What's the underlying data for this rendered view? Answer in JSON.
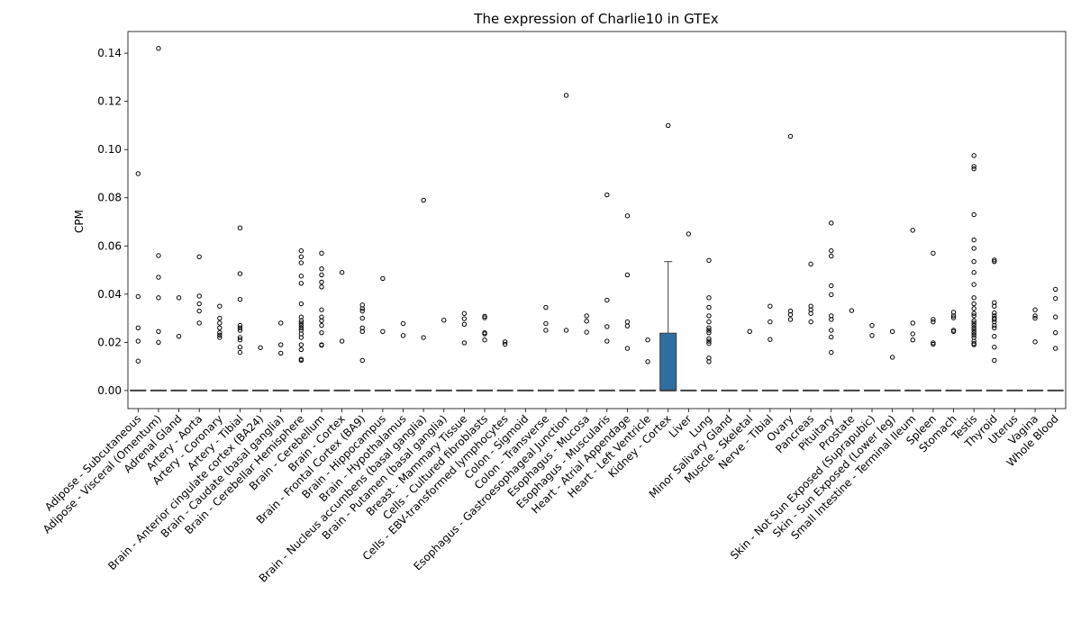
{
  "chart_data": {
    "type": "box",
    "title": "The expression of Charlie10 in GTEx",
    "xlabel": "",
    "ylabel": "CPM",
    "ylim": [
      -0.0075,
      0.149
    ],
    "yticks": [
      0.0,
      0.02,
      0.04,
      0.06,
      0.08,
      0.1,
      0.12,
      0.14
    ],
    "ytick_labels": [
      "0.00",
      "0.02",
      "0.04",
      "0.06",
      "0.08",
      "0.10",
      "0.12",
      "0.14"
    ],
    "box_color": "#2f6e9e",
    "grid": false,
    "categories": [
      "Adipose - Subcutaneous",
      "Adipose - Visceral (Omentum)",
      "Adrenal Gland",
      "Artery - Aorta",
      "Artery - Coronary",
      "Artery - Tibial",
      "Brain - Anterior cingulate cortex (BA24)",
      "Brain - Caudate (basal ganglia)",
      "Brain - Cerebellar Hemisphere",
      "Brain - Cerebellum",
      "Brain - Cortex",
      "Brain - Frontal Cortex (BA9)",
      "Brain - Hippocampus",
      "Brain - Hypothalamus",
      "Brain - Nucleus accumbens (basal ganglia)",
      "Brain - Putamen (basal ganglia)",
      "Breast - Mammary Tissue",
      "Cells - Cultured fibroblasts",
      "Cells - EBV-transformed lymphocytes",
      "Colon - Sigmoid",
      "Colon - Transverse",
      "Esophagus - Gastroesophageal Junction",
      "Esophagus - Mucosa",
      "Esophagus - Muscularis",
      "Heart - Atrial Appendage",
      "Heart - Left Ventricle",
      "Kidney - Cortex",
      "Liver",
      "Lung",
      "Minor Salivary Gland",
      "Muscle - Skeletal",
      "Nerve - Tibial",
      "Ovary",
      "Pancreas",
      "Pituitary",
      "Prostate",
      "Skin - Not Sun Exposed (Suprapubic)",
      "Skin - Sun Exposed (Lower leg)",
      "Small Intestine - Terminal Ileum",
      "Spleen",
      "Stomach",
      "Testis",
      "Thyroid",
      "Uterus",
      "Vagina",
      "Whole Blood"
    ],
    "boxes": [
      {
        "median": 0,
        "q1": 0,
        "q3": 0,
        "whisker_low": 0,
        "whisker_high": 0,
        "fliers": [
          0.09,
          0.039,
          0.026,
          0.0205,
          0.0122
        ]
      },
      {
        "median": 0,
        "q1": 0,
        "q3": 0,
        "whisker_low": 0,
        "whisker_high": 0,
        "fliers": [
          0.142,
          0.056,
          0.047,
          0.0385,
          0.0245,
          0.02
        ]
      },
      {
        "median": 0,
        "q1": 0,
        "q3": 0,
        "whisker_low": 0,
        "whisker_high": 0,
        "fliers": [
          0.0385,
          0.0225
        ]
      },
      {
        "median": 0,
        "q1": 0,
        "q3": 0,
        "whisker_low": 0,
        "whisker_high": 0,
        "fliers": [
          0.0555,
          0.0392,
          0.036,
          0.033,
          0.028
        ]
      },
      {
        "median": 0,
        "q1": 0,
        "q3": 0,
        "whisker_low": 0,
        "whisker_high": 0,
        "fliers": [
          0.035,
          0.03,
          0.028,
          0.026,
          0.024,
          0.023,
          0.022
        ]
      },
      {
        "median": 0,
        "q1": 0,
        "q3": 0,
        "whisker_low": 0,
        "whisker_high": 0,
        "fliers": [
          0.0675,
          0.0485,
          0.0378,
          0.027,
          0.026,
          0.025,
          0.022,
          0.021,
          0.018,
          0.0158
        ]
      },
      {
        "median": 0,
        "q1": 0,
        "q3": 0,
        "whisker_low": 0,
        "whisker_high": 0,
        "fliers": [
          0.0178
        ]
      },
      {
        "median": 0,
        "q1": 0,
        "q3": 0,
        "whisker_low": 0,
        "whisker_high": 0,
        "fliers": [
          0.028,
          0.019,
          0.0155
        ]
      },
      {
        "median": 0,
        "q1": 0,
        "q3": 0,
        "whisker_low": 0,
        "whisker_high": 0,
        "fliers": [
          0.058,
          0.0555,
          0.053,
          0.0475,
          0.0445,
          0.036,
          0.0305,
          0.029,
          0.028,
          0.027,
          0.026,
          0.025,
          0.0235,
          0.022,
          0.019,
          0.017,
          0.013,
          0.0125
        ]
      },
      {
        "median": 0,
        "q1": 0,
        "q3": 0,
        "whisker_low": 0,
        "whisker_high": 0,
        "fliers": [
          0.057,
          0.0505,
          0.048,
          0.045,
          0.043,
          0.0335,
          0.0305,
          0.029,
          0.027,
          0.024,
          0.019,
          0.0188
        ]
      },
      {
        "median": 0,
        "q1": 0,
        "q3": 0,
        "whisker_low": 0,
        "whisker_high": 0,
        "fliers": [
          0.049,
          0.0205
        ]
      },
      {
        "median": 0,
        "q1": 0,
        "q3": 0,
        "whisker_low": 0,
        "whisker_high": 0,
        "fliers": [
          0.0355,
          0.034,
          0.033,
          0.03,
          0.026,
          0.0245,
          0.0125
        ]
      },
      {
        "median": 0,
        "q1": 0,
        "q3": 0,
        "whisker_low": 0,
        "whisker_high": 0,
        "fliers": [
          0.0465,
          0.0245
        ]
      },
      {
        "median": 0,
        "q1": 0,
        "q3": 0,
        "whisker_low": 0,
        "whisker_high": 0,
        "fliers": [
          0.0278,
          0.0228
        ]
      },
      {
        "median": 0,
        "q1": 0,
        "q3": 0,
        "whisker_low": 0,
        "whisker_high": 0,
        "fliers": [
          0.079,
          0.022
        ]
      },
      {
        "median": 0,
        "q1": 0,
        "q3": 0,
        "whisker_low": 0,
        "whisker_high": 0,
        "fliers": [
          0.0292
        ]
      },
      {
        "median": 0,
        "q1": 0,
        "q3": 0,
        "whisker_low": 0,
        "whisker_high": 0,
        "fliers": [
          0.032,
          0.0298,
          0.0275,
          0.0198
        ]
      },
      {
        "median": 0,
        "q1": 0,
        "q3": 0,
        "whisker_low": 0,
        "whisker_high": 0,
        "fliers": [
          0.0308,
          0.0302,
          0.024,
          0.0235,
          0.021
        ]
      },
      {
        "median": 0,
        "q1": 0,
        "q3": 0,
        "whisker_low": 0,
        "whisker_high": 0,
        "fliers": [
          0.0202,
          0.0192
        ]
      },
      {
        "median": 0,
        "q1": 0,
        "q3": 0,
        "whisker_low": 0,
        "whisker_high": 0,
        "fliers": []
      },
      {
        "median": 0,
        "q1": 0,
        "q3": 0,
        "whisker_low": 0,
        "whisker_high": 0,
        "fliers": [
          0.0345,
          0.0278,
          0.025
        ]
      },
      {
        "median": 0,
        "q1": 0,
        "q3": 0,
        "whisker_low": 0,
        "whisker_high": 0,
        "fliers": [
          0.1225,
          0.025
        ]
      },
      {
        "median": 0,
        "q1": 0,
        "q3": 0,
        "whisker_low": 0,
        "whisker_high": 0,
        "fliers": [
          0.031,
          0.0288,
          0.0242
        ]
      },
      {
        "median": 0,
        "q1": 0,
        "q3": 0,
        "whisker_low": 0,
        "whisker_high": 0,
        "fliers": [
          0.0812,
          0.0375,
          0.0265,
          0.0205
        ]
      },
      {
        "median": 0,
        "q1": 0,
        "q3": 0,
        "whisker_low": 0,
        "whisker_high": 0,
        "fliers": [
          0.0725,
          0.048,
          0.0285,
          0.0268,
          0.0175
        ]
      },
      {
        "median": 0,
        "q1": 0,
        "q3": 0,
        "whisker_low": 0,
        "whisker_high": 0,
        "fliers": [
          0.021,
          0.012
        ]
      },
      {
        "median": 0,
        "q1": 0,
        "q3": 0.0238,
        "whisker_low": 0,
        "whisker_high": 0.0535,
        "fliers": [
          0.11
        ]
      },
      {
        "median": 0,
        "q1": 0,
        "q3": 0,
        "whisker_low": 0,
        "whisker_high": 0,
        "fliers": [
          0.065
        ]
      },
      {
        "median": 0,
        "q1": 0,
        "q3": 0,
        "whisker_low": 0,
        "whisker_high": 0,
        "fliers": [
          0.054,
          0.0385,
          0.0345,
          0.031,
          0.0285,
          0.026,
          0.025,
          0.024,
          0.0215,
          0.0205,
          0.0195,
          0.0135,
          0.012
        ]
      },
      {
        "median": 0,
        "q1": 0,
        "q3": 0,
        "whisker_low": 0,
        "whisker_high": 0,
        "fliers": []
      },
      {
        "median": 0,
        "q1": 0,
        "q3": 0,
        "whisker_low": 0,
        "whisker_high": 0,
        "fliers": [
          0.0245
        ]
      },
      {
        "median": 0,
        "q1": 0,
        "q3": 0,
        "whisker_low": 0,
        "whisker_high": 0,
        "fliers": [
          0.035,
          0.0285,
          0.0212
        ]
      },
      {
        "median": 0,
        "q1": 0,
        "q3": 0,
        "whisker_low": 0,
        "whisker_high": 0,
        "fliers": [
          0.1055,
          0.033,
          0.0315,
          0.0295
        ]
      },
      {
        "median": 0,
        "q1": 0,
        "q3": 0,
        "whisker_low": 0,
        "whisker_high": 0,
        "fliers": [
          0.0525,
          0.035,
          0.0335,
          0.032,
          0.0285
        ]
      },
      {
        "median": 0,
        "q1": 0,
        "q3": 0,
        "whisker_low": 0,
        "whisker_high": 0,
        "fliers": [
          0.0695,
          0.058,
          0.0558,
          0.0435,
          0.0398,
          0.031,
          0.0295,
          0.025,
          0.0222,
          0.0158
        ]
      },
      {
        "median": 0,
        "q1": 0,
        "q3": 0,
        "whisker_low": 0,
        "whisker_high": 0,
        "fliers": [
          0.0332
        ]
      },
      {
        "median": 0,
        "q1": 0,
        "q3": 0,
        "whisker_low": 0,
        "whisker_high": 0,
        "fliers": [
          0.027,
          0.0228
        ]
      },
      {
        "median": 0,
        "q1": 0,
        "q3": 0,
        "whisker_low": 0,
        "whisker_high": 0,
        "fliers": [
          0.0245,
          0.0138
        ]
      },
      {
        "median": 0,
        "q1": 0,
        "q3": 0,
        "whisker_low": 0,
        "whisker_high": 0,
        "fliers": [
          0.0665,
          0.028,
          0.0235,
          0.021
        ]
      },
      {
        "median": 0,
        "q1": 0,
        "q3": 0,
        "whisker_low": 0,
        "whisker_high": 0,
        "fliers": [
          0.057,
          0.0295,
          0.0285,
          0.0198,
          0.0192
        ]
      },
      {
        "median": 0,
        "q1": 0,
        "q3": 0,
        "whisker_low": 0,
        "whisker_high": 0,
        "fliers": [
          0.0325,
          0.031,
          0.0302,
          0.025,
          0.0245
        ]
      },
      {
        "median": 0,
        "q1": 0,
        "q3": 0,
        "whisker_low": 0,
        "whisker_high": 0,
        "fliers": [
          0.0975,
          0.093,
          0.092,
          0.073,
          0.0625,
          0.059,
          0.0535,
          0.049,
          0.044,
          0.0385,
          0.036,
          0.034,
          0.032,
          0.031,
          0.029,
          0.028,
          0.027,
          0.026,
          0.025,
          0.024,
          0.023,
          0.022,
          0.0205,
          0.0195,
          0.019
        ]
      },
      {
        "median": 0,
        "q1": 0,
        "q3": 0,
        "whisker_low": 0,
        "whisker_high": 0,
        "fliers": [
          0.0542,
          0.0535,
          0.0365,
          0.035,
          0.0322,
          0.031,
          0.03,
          0.0295,
          0.0285,
          0.027,
          0.026,
          0.0225,
          0.018,
          0.0125
        ]
      },
      {
        "median": 0,
        "q1": 0,
        "q3": 0,
        "whisker_low": 0,
        "whisker_high": 0,
        "fliers": []
      },
      {
        "median": 0,
        "q1": 0,
        "q3": 0,
        "whisker_low": 0,
        "whisker_high": 0,
        "fliers": [
          0.0335,
          0.031,
          0.03,
          0.0202
        ]
      },
      {
        "median": 0,
        "q1": 0,
        "q3": 0,
        "whisker_low": 0,
        "whisker_high": 0,
        "fliers": [
          0.042,
          0.0382,
          0.0305,
          0.024,
          0.0175
        ]
      }
    ]
  }
}
